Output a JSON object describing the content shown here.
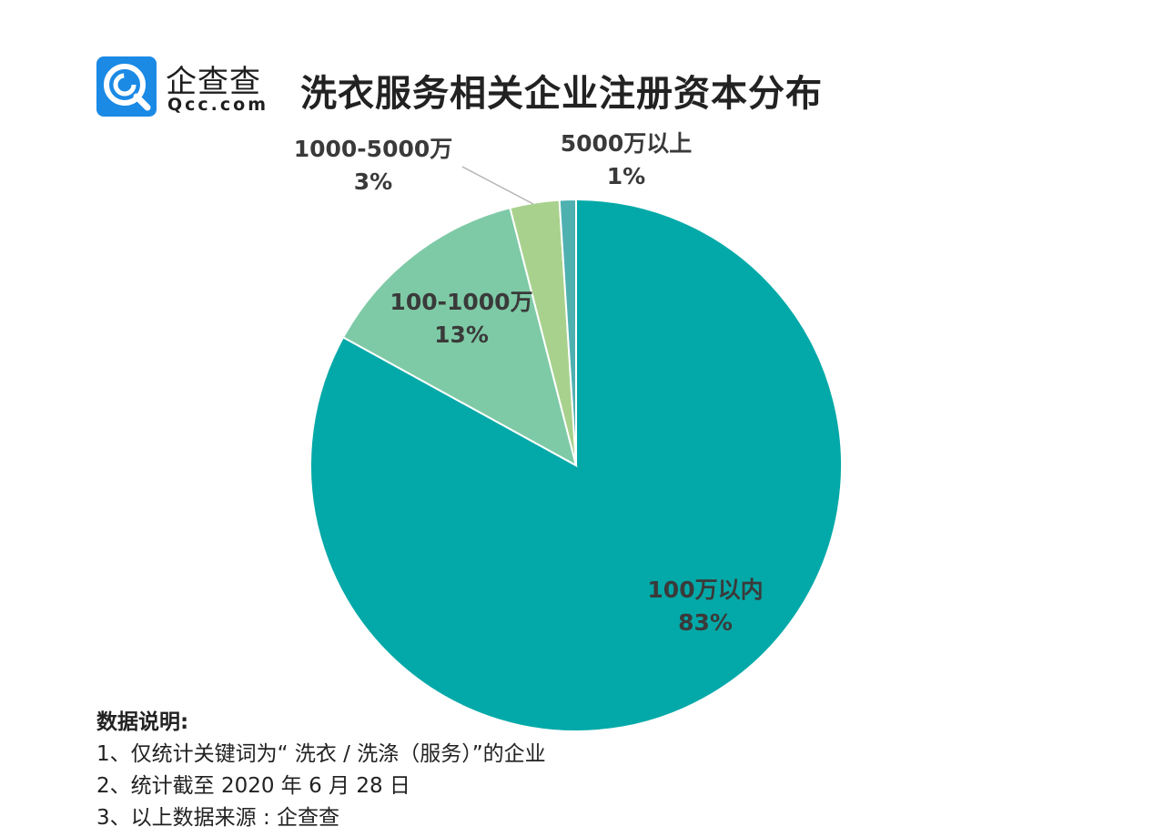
{
  "brand": {
    "name_cn": "企查查",
    "name_en": "Qcc.com",
    "colors": {
      "logo_bg": "#1a8ae5"
    }
  },
  "chart_data": {
    "type": "pie",
    "title": "洗衣服务相关企业注册资本分布",
    "start_angle_deg": 0,
    "direction": "clockwise",
    "slices": [
      {
        "label": "100万以内",
        "value": 83,
        "value_label": "83%",
        "color": "#03a9a8"
      },
      {
        "label": "100-1000万",
        "value": 13,
        "value_label": "13%",
        "color": "#7ecaa6"
      },
      {
        "label": "1000-5000万",
        "value": 3,
        "value_label": "3%",
        "color": "#a8d18d"
      },
      {
        "label": "5000万以上",
        "value": 1,
        "value_label": "1%",
        "color": "#4fb0b0"
      }
    ]
  },
  "notes": {
    "title": "数据说明:",
    "lines": [
      "1、仅统计关键词为“ 洗衣 / 洗涤（服务）”的企业",
      "2、统计截至 2020 年 6 月 28 日",
      "3、以上数据来源 : 企查查"
    ]
  }
}
